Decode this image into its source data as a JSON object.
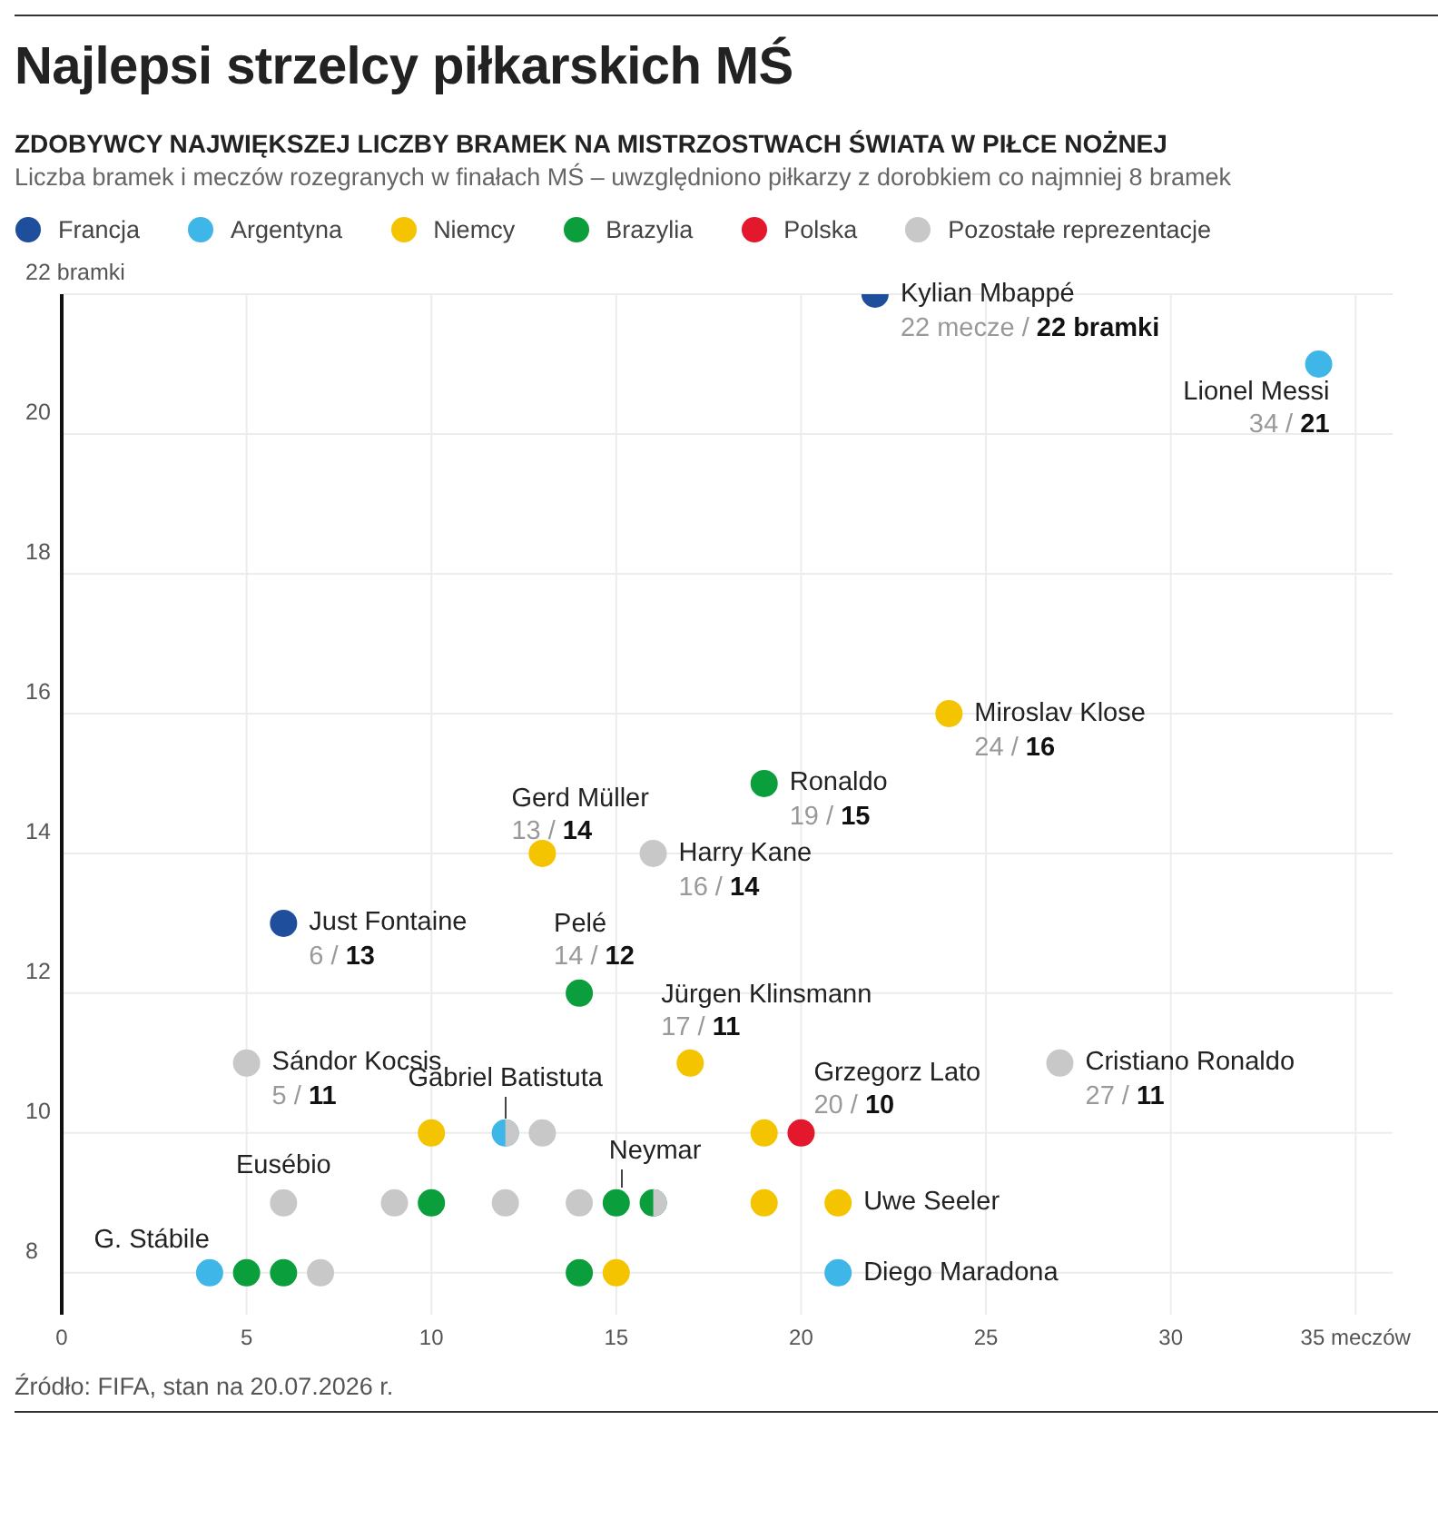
{
  "chart_data": {
    "type": "scatter",
    "title": "Najlepsi strzelcy piłkarskich MŚ",
    "subtitle": "ZDOBYWCY NAJWIĘKSZEJ LICZBY BRAMEK NA MISTRZOSTWACH ŚWIATA W PIŁCE NOŻNEJ",
    "xlim": [
      0,
      36
    ],
    "ylim": [
      7.4,
      22
    ],
    "xticks": [
      0,
      5,
      10,
      15,
      20,
      25,
      30,
      {
        "value": 35,
        "label": "35 meczów"
      }
    ],
    "yticks": [
      8,
      10,
      12,
      14,
      16,
      18,
      20,
      {
        "value": 22,
        "label": "22 bramki"
      }
    ],
    "grid": true,
    "legend": "top left",
    "marker": "circle",
    "series": [
      {
        "name": "Francja",
        "color": "#1f4e9c",
        "x": [
          22,
          6
        ],
        "values": [
          22,
          13
        ]
      },
      {
        "name": "Argentyna",
        "color": "#3fb6e8",
        "x": [
          34,
          12,
          4,
          21
        ],
        "values": [
          21,
          10,
          8,
          8
        ]
      },
      {
        "name": "Niemcy",
        "color": "#f5c400",
        "x": [
          24,
          13,
          17,
          10,
          19,
          19,
          21,
          15
        ],
        "values": [
          16,
          14,
          11,
          10,
          10,
          9,
          9,
          8
        ]
      },
      {
        "name": "Brazylia",
        "color": "#0a9e3c",
        "x": [
          19,
          14,
          10,
          15,
          16,
          5,
          6,
          14
        ],
        "values": [
          15,
          12,
          9,
          9,
          9,
          8,
          8,
          8
        ]
      },
      {
        "name": "Polska",
        "color": "#e3182d",
        "x": [
          20
        ],
        "values": [
          10
        ]
      },
      {
        "name": "Pozostałe reprezentacje",
        "color": "#c8c8c8",
        "x": [
          16,
          5,
          27,
          12,
          13,
          6,
          9,
          12,
          14,
          16,
          7
        ],
        "values": [
          14,
          11,
          11,
          10,
          10,
          9,
          9,
          9,
          9,
          9,
          8
        ]
      }
    ],
    "annotations": [
      "Liczba bramek i meczów rozegranych w finałach MŚ – uwzględniono piłkarzy z dorobkiem co najmniej 8 bramek",
      {
        "text": "Kylian Mbappé",
        "x": 22,
        "y": 22
      },
      {
        "text": "22 mecze / 22 bramki",
        "x": 22,
        "y": 22
      },
      {
        "text": "Lionel Messi",
        "x": 34,
        "y": 21
      },
      {
        "text": "34 / 21",
        "x": 34,
        "y": 21
      },
      {
        "text": "Miroslav Klose",
        "x": 24,
        "y": 16
      },
      {
        "text": "24 / 16",
        "x": 24,
        "y": 16
      },
      {
        "text": "Gerd Müller",
        "x": 13,
        "y": 14
      },
      {
        "text": "13 / 14",
        "x": 13,
        "y": 14
      },
      {
        "text": "Ronaldo",
        "x": 19,
        "y": 15
      },
      {
        "text": "19 / 15",
        "x": 19,
        "y": 15
      },
      {
        "text": "Harry Kane",
        "x": 16,
        "y": 14
      },
      {
        "text": "16 / 14",
        "x": 16,
        "y": 14
      },
      {
        "text": "Just Fontaine",
        "x": 6,
        "y": 13
      },
      {
        "text": "6 / 13",
        "x": 6,
        "y": 13
      },
      {
        "text": "Pelé",
        "x": 14,
        "y": 12
      },
      {
        "text": "14 / 12",
        "x": 14,
        "y": 12
      },
      {
        "text": "Jürgen Klinsmann",
        "x": 17,
        "y": 11
      },
      {
        "text": "17 / 11",
        "x": 17,
        "y": 11
      },
      {
        "text": "Sándor Kocsis",
        "x": 5,
        "y": 11
      },
      {
        "text": "5 / 11",
        "x": 5,
        "y": 11
      },
      {
        "text": "Grzegorz Lato",
        "x": 20,
        "y": 10
      },
      {
        "text": "20 / 10",
        "x": 20,
        "y": 10
      },
      {
        "text": "Cristiano Ronaldo",
        "x": 27,
        "y": 11
      },
      {
        "text": "27 / 11",
        "x": 27,
        "y": 11
      },
      {
        "text": "Gabriel Batistuta",
        "x": 12,
        "y": 10
      },
      {
        "text": "Eusébio",
        "x": 6,
        "y": 9
      },
      {
        "text": "Neymar",
        "x": 15,
        "y": 9
      },
      {
        "text": "Uwe Seeler",
        "x": 21,
        "y": 9
      },
      {
        "text": "G. Stábile",
        "x": 4,
        "y": 8
      },
      {
        "text": "Diego Maradona",
        "x": 21,
        "y": 8
      },
      "Źródło: FIFA, stan na 20.07.2026 r."
    ]
  }
}
